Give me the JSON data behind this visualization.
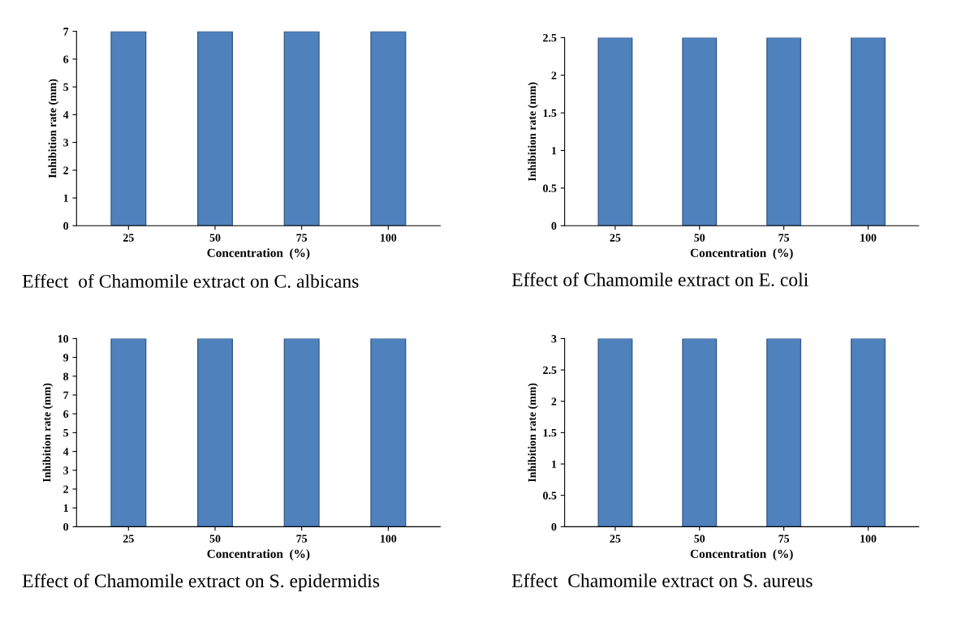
{
  "chart_data": [
    {
      "type": "bar",
      "categories": [
        "25",
        "50",
        "75",
        "100"
      ],
      "values": [
        7,
        7,
        7,
        7
      ],
      "color": "#4f81bd",
      "xlabel": "Concentration  (%)",
      "ylabel": "Inhibition rate (mm)",
      "ylim": [
        0,
        7
      ],
      "yticks": [
        0,
        1,
        2,
        3,
        4,
        5,
        6,
        7
      ],
      "annotations": [
        "Effect  of Chamomile extract on C. albicans"
      ]
    },
    {
      "type": "bar",
      "categories": [
        "25",
        "50",
        "75",
        "100"
      ],
      "values": [
        2.5,
        2.5,
        2.5,
        2.5
      ],
      "color": "#4f81bd",
      "xlabel": "Concentration  (%)",
      "ylabel": "Inhibition rate (mm)",
      "ylim": [
        0,
        2.5
      ],
      "yticks": [
        0,
        0.5,
        1,
        1.5,
        2,
        2.5
      ],
      "annotations": [
        "Effect of Chamomile extract on E. coli"
      ]
    },
    {
      "type": "bar",
      "categories": [
        "25",
        "50",
        "75",
        "100"
      ],
      "values": [
        10,
        10,
        10,
        10
      ],
      "color": "#4f81bd",
      "xlabel": "Concentration  (%)",
      "ylabel": "Inhibition rate (mm)",
      "ylim": [
        0,
        10
      ],
      "yticks": [
        0,
        1,
        2,
        3,
        4,
        5,
        6,
        7,
        8,
        9,
        10
      ],
      "annotations": [
        "Effect of Chamomile extract on S. epidermidis"
      ]
    },
    {
      "type": "bar",
      "categories": [
        "25",
        "50",
        "75",
        "100"
      ],
      "values": [
        3,
        3,
        3,
        3
      ],
      "color": "#4f81bd",
      "xlabel": "Concentration  (%)",
      "ylabel": "Inhibition rate (mm)",
      "ylim": [
        0,
        3
      ],
      "yticks": [
        0,
        0.5,
        1,
        1.5,
        2,
        2.5,
        3
      ],
      "annotations": [
        "Effect  Chamomile extract on S. aureus"
      ]
    }
  ]
}
